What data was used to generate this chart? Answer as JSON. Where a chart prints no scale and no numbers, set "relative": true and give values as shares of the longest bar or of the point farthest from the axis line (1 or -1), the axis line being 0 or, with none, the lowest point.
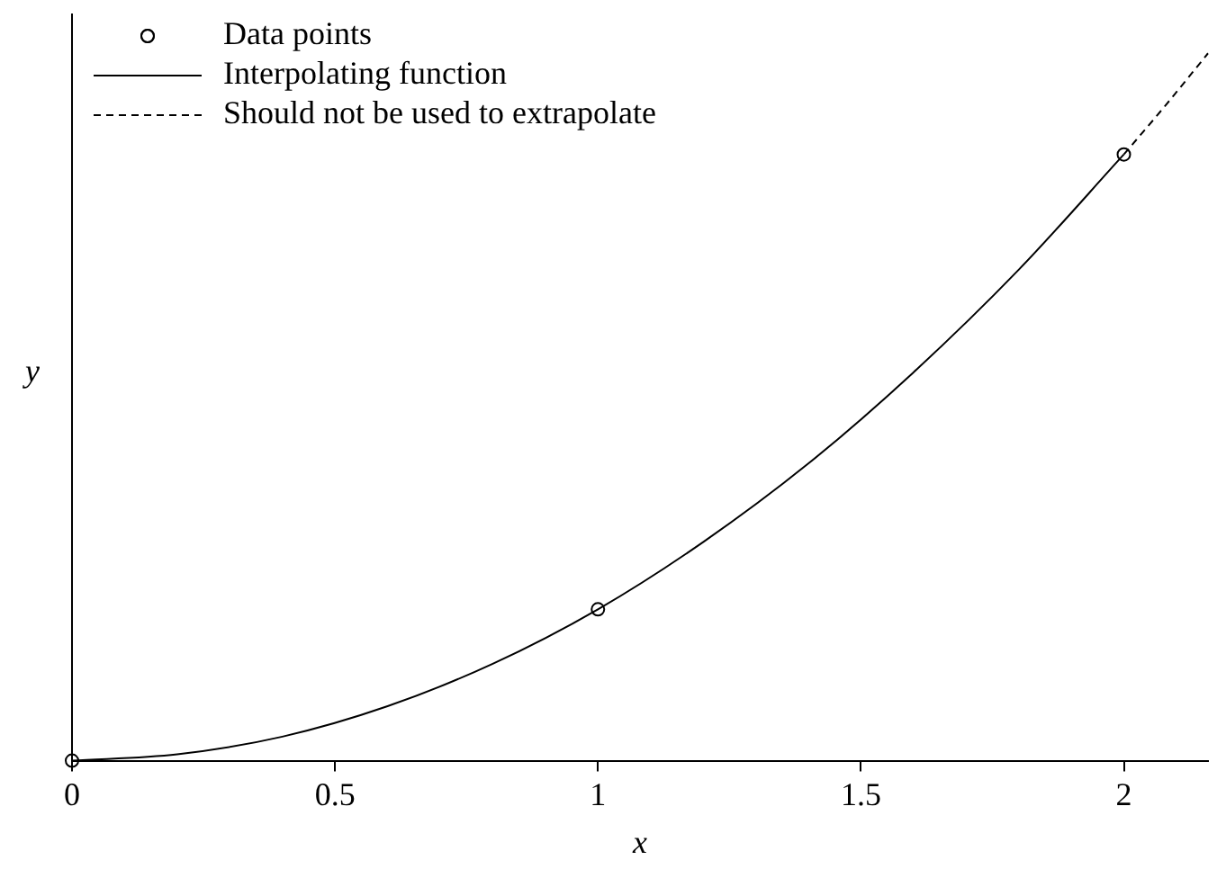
{
  "chart_data": {
    "type": "line",
    "relative": true,
    "xlabel": "x",
    "ylabel": "y",
    "xlim": [
      0,
      2.16
    ],
    "xticks": [
      0,
      {
        "value": 0.5,
        "label": "0.5"
      },
      1,
      {
        "value": 1.5,
        "label": "1.5"
      },
      2
    ],
    "grid": false,
    "legend": "top left",
    "series": [
      {
        "name": "Data points",
        "type": "scatter",
        "marker": "circle",
        "color": "#000000",
        "x": [
          0,
          1,
          2
        ],
        "values": [
          0,
          0.214,
          0.857
        ]
      },
      {
        "name": "Interpolating function",
        "line_style": "solid",
        "marker": "none",
        "color": "#000000",
        "x": [
          0,
          0.2,
          0.4,
          0.6,
          0.8,
          1.0,
          1.2,
          1.4,
          1.6,
          1.8,
          2.0
        ],
        "values": [
          0,
          0.009,
          0.034,
          0.077,
          0.137,
          0.214,
          0.309,
          0.42,
          0.549,
          0.694,
          0.857
        ]
      },
      {
        "name": "Should not be used to extrapolate",
        "line_style": "dashed",
        "marker": "none",
        "color": "#000000",
        "x": [
          2.0,
          2.08,
          2.16
        ],
        "values": [
          0.857,
          0.927,
          1
        ]
      }
    ]
  }
}
